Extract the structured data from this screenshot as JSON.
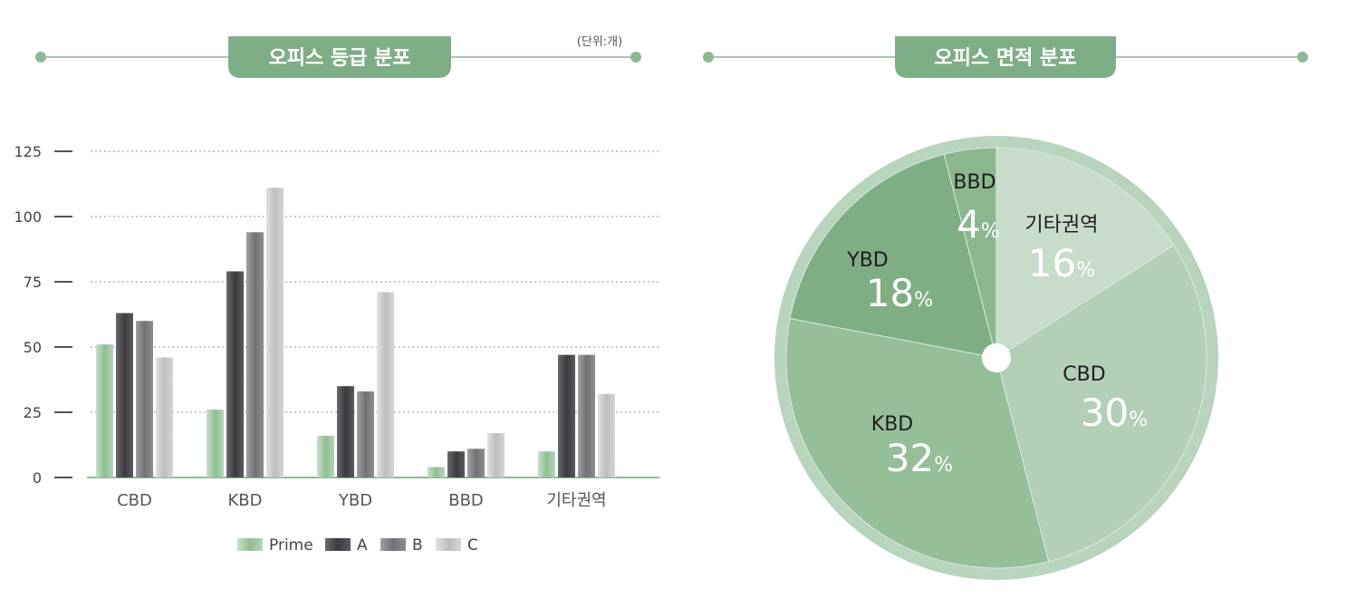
{
  "bar_panel": {
    "title": "오피스 등급 분포",
    "unit": "(단위:개)"
  },
  "pie_panel": {
    "title": "오피스 면적 분포"
  },
  "colors": {
    "accent": "#8fb996",
    "header": "#7fae86",
    "prime": "#8fbf92",
    "a": "#4b4b4f",
    "b": "#7c7c80",
    "c": "#c9c9cc",
    "pie_dark": "#7fb084",
    "pie_mid": "#8ebb92",
    "pie_light": "#c2d8c4"
  },
  "chart_data": [
    {
      "type": "bar",
      "categories": [
        "CBD",
        "KBD",
        "YBD",
        "BBD",
        "기타권역"
      ],
      "series": [
        {
          "name": "Prime",
          "values": [
            51,
            26,
            16,
            4,
            10
          ]
        },
        {
          "name": "A",
          "values": [
            63,
            79,
            35,
            10,
            47
          ]
        },
        {
          "name": "B",
          "values": [
            60,
            94,
            33,
            11,
            47
          ]
        },
        {
          "name": "C",
          "values": [
            46,
            111,
            71,
            17,
            32
          ]
        }
      ],
      "yticks": [
        "0",
        "25",
        "50",
        "75",
        "100",
        "125"
      ],
      "ylim": [
        0,
        125
      ],
      "grid": true,
      "legend": "bottom"
    },
    {
      "type": "pie",
      "labels": [
        "CBD",
        "KBD",
        "YBD",
        "BBD",
        "기타권역"
      ],
      "values": [
        30,
        32,
        18,
        4,
        16
      ],
      "value_suffix": "%"
    }
  ]
}
